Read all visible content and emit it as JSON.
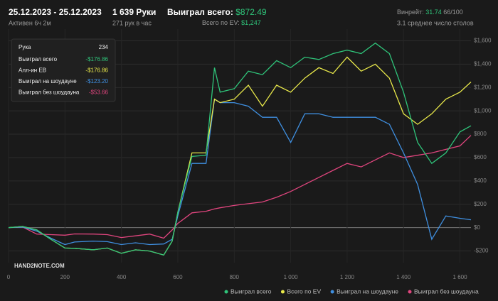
{
  "header": {
    "period": "25.12.2023 - 25.12.2023",
    "active": "Активен 6ч 2м",
    "hands": "1 639 Руки",
    "hands_per_hour": "271 рук в час",
    "won_label": "Выиграл всего:",
    "won_value": "$872.49",
    "ev_label": "Всего по EV:",
    "ev_value": "$1,247",
    "winrate_label": "Винрейт:",
    "winrate_value": "31.74",
    "winrate_unit": "66/100",
    "tables": "3.1 среднее число столов"
  },
  "tooltip": {
    "hand_label": "Рука",
    "hand": "234",
    "rows": [
      {
        "label": "Выиграл всего",
        "value": "-$176.86",
        "color": "#2fc47a"
      },
      {
        "label": "Алл-ин EB",
        "value": "-$176.86",
        "color": "#e8e84a"
      },
      {
        "label": "Выиграл на шоудауне",
        "value": "-$123.20",
        "color": "#3f8fe0"
      },
      {
        "label": "Выиграл без шоудауна",
        "value": "-$53.66",
        "color": "#e0457e"
      }
    ]
  },
  "logo": "HAND2NOTE.COM",
  "chart_data": {
    "type": "line",
    "x": [
      0,
      50,
      100,
      150,
      200,
      234,
      300,
      350,
      400,
      450,
      500,
      550,
      580,
      600,
      650,
      700,
      730,
      750,
      800,
      850,
      900,
      950,
      1000,
      1050,
      1100,
      1150,
      1200,
      1250,
      1300,
      1350,
      1400,
      1450,
      1500,
      1550,
      1600,
      1639
    ],
    "series": [
      {
        "name": "Выиграл всего",
        "color": "#2fc47a",
        "values": [
          0,
          10,
          -20,
          -100,
          -175,
          -177,
          -190,
          -175,
          -220,
          -190,
          -200,
          -235,
          -115,
          130,
          610,
          620,
          1370,
          1160,
          1190,
          1340,
          1310,
          1430,
          1370,
          1460,
          1440,
          1490,
          1520,
          1490,
          1580,
          1490,
          1160,
          730,
          550,
          640,
          820,
          872
        ]
      },
      {
        "name": "Всего по EV",
        "color": "#e8e84a",
        "values": [
          0,
          10,
          -20,
          -100,
          -175,
          -177,
          -190,
          -175,
          -220,
          -190,
          -200,
          -235,
          -115,
          130,
          640,
          640,
          1100,
          1070,
          1100,
          1220,
          1040,
          1220,
          1160,
          1280,
          1370,
          1320,
          1460,
          1340,
          1400,
          1280,
          975,
          885,
          975,
          1100,
          1160,
          1247
        ]
      },
      {
        "name": "Выиграл на шоудауне",
        "color": "#3f8fe0",
        "values": [
          0,
          5,
          -30,
          -90,
          -145,
          -123,
          -115,
          -120,
          -145,
          -130,
          -145,
          -140,
          -100,
          100,
          550,
          550,
          1100,
          1070,
          1070,
          1040,
          945,
          945,
          730,
          975,
          975,
          945,
          945,
          945,
          945,
          885,
          640,
          370,
          -100,
          100,
          80,
          67
        ]
      },
      {
        "name": "Выиграл без шоудауна",
        "color": "#e0457e",
        "values": [
          0,
          5,
          -55,
          -60,
          -65,
          -54,
          -55,
          -60,
          -85,
          -70,
          -55,
          -90,
          -20,
          36,
          127,
          140,
          160,
          170,
          190,
          205,
          220,
          260,
          310,
          370,
          430,
          490,
          550,
          520,
          580,
          640,
          600,
          620,
          640,
          670,
          700,
          790
        ]
      }
    ],
    "xlim": [
      0,
      1639
    ],
    "ylim": [
      -300,
      1700
    ],
    "xticks": [
      0,
      200,
      400,
      600,
      800,
      {
        "value": 1000,
        "label": "1 000"
      },
      {
        "value": 1200,
        "label": "1 200"
      },
      {
        "value": 1400,
        "label": "1 400"
      },
      {
        "value": 1600,
        "label": "1 600"
      }
    ],
    "yticks": [
      {
        "value": -200,
        "label": "-$200"
      },
      {
        "value": 0,
        "label": "$0"
      },
      {
        "value": 200,
        "label": "$200"
      },
      {
        "value": 400,
        "label": "$400"
      },
      {
        "value": 600,
        "label": "$600"
      },
      {
        "value": 800,
        "label": "$800"
      },
      {
        "value": 1000,
        "label": "$1,000"
      },
      {
        "value": 1200,
        "label": "$1,200"
      },
      {
        "value": 1400,
        "label": "$1,400"
      },
      {
        "value": 1600,
        "label": "$1,600"
      }
    ],
    "grid": true
  }
}
